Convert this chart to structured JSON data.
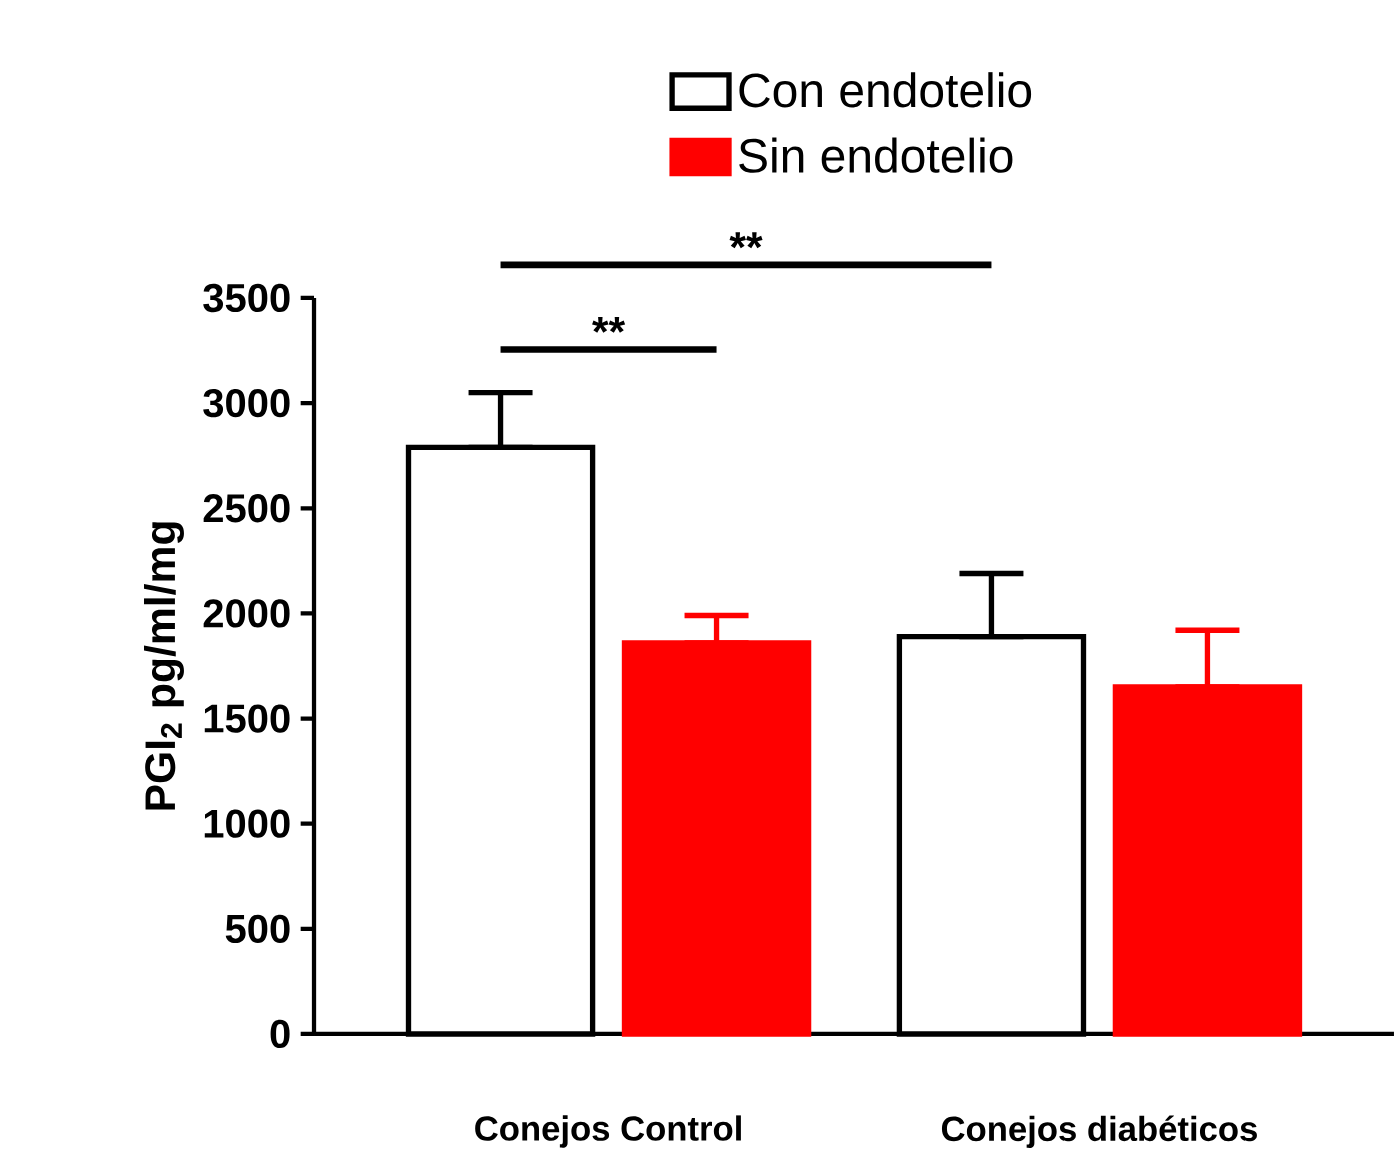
{
  "chart_data": {
    "type": "bar",
    "categories": [
      "Conejos Control",
      "Conejos diabéticos"
    ],
    "ylabel": "PGI$_{2}$ pg/ml/mg",
    "ylim": [
      0,
      3500
    ],
    "yticks": [
      0,
      500,
      1000,
      1500,
      2000,
      2500,
      3000,
      3500
    ],
    "series": [
      {
        "name": "Con endotelio",
        "color": "#ffffff",
        "values": [
          2790,
          1890
        ],
        "errors": [
          [
            2790,
            3050
          ],
          [
            1890,
            2190
          ]
        ]
      },
      {
        "name": "Sin endotelio",
        "color": "#ff0000",
        "values": [
          1860,
          1650
        ],
        "errors": [
          [
            1860,
            1990
          ],
          [
            1650,
            1920
          ]
        ]
      }
    ],
    "annotations": [
      "**",
      "**"
    ],
    "legend": "top",
    "grid": false
  }
}
